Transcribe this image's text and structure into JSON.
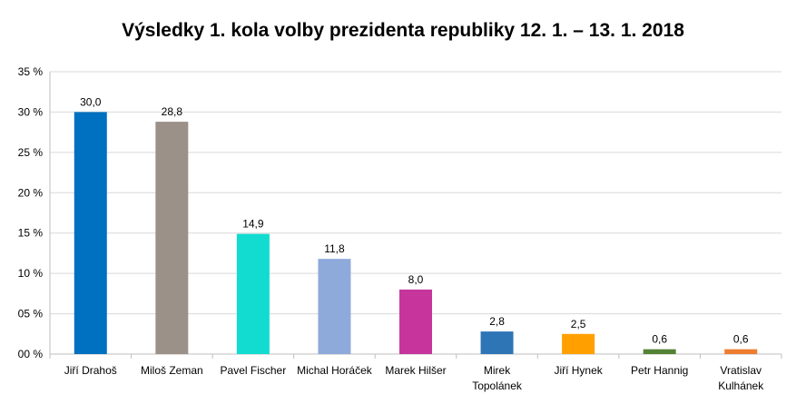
{
  "chart_data": {
    "type": "bar",
    "title": "Výsledky 1. kola volby prezidenta republiky 12. 1. – 13. 1. 2018",
    "xlabel": "",
    "ylabel": "",
    "ylim": [
      0,
      35
    ],
    "grid": true,
    "yticks": [
      0,
      5,
      10,
      15,
      20,
      25,
      30,
      35
    ],
    "ytick_labels": [
      "00 %",
      "05 %",
      "10 %",
      "15 %",
      "20 %",
      "25 %",
      "30 %",
      "35 %"
    ],
    "categories": [
      [
        "Jiří Drahoš"
      ],
      [
        "Miloš Zeman"
      ],
      [
        "Pavel Fischer"
      ],
      [
        "Michal Horáček"
      ],
      [
        "Marek Hilšer"
      ],
      [
        "Mirek",
        "Topolánek"
      ],
      [
        "Jiří Hynek"
      ],
      [
        "Petr Hannig"
      ],
      [
        "Vratislav",
        "Kulhánek"
      ]
    ],
    "values": [
      30.0,
      28.8,
      14.9,
      11.8,
      8.0,
      2.8,
      2.5,
      0.6,
      0.6
    ],
    "value_labels": [
      "30,0",
      "28,8",
      "14,9",
      "11,8",
      "8,0",
      "2,8",
      "2,5",
      "0,6",
      "0,6"
    ],
    "colors": [
      "#0070c0",
      "#9c9188",
      "#12dbd0",
      "#8eaadb",
      "#c6359c",
      "#2e75b6",
      "#ffa000",
      "#548235",
      "#ed7d31"
    ]
  }
}
